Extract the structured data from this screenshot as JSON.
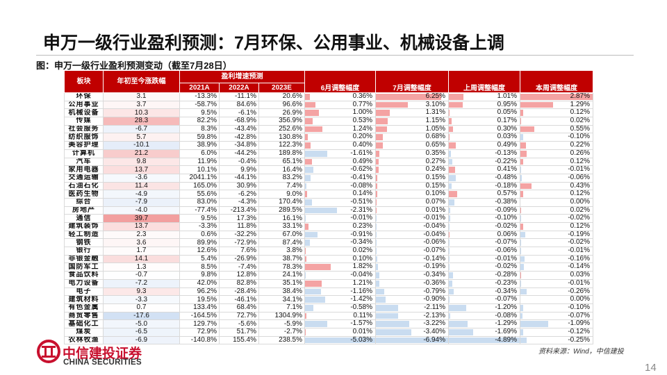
{
  "header": {
    "title": "申万一级行业盈利预测：7月环保、公用事业、机械设备上调",
    "caption": "图：申万一级行业盈利预测变动（截至7月28日）"
  },
  "table": {
    "sector_header": "板块",
    "ytd_header": "年初至今涨跌幅",
    "growth_header": "盈利增速预测",
    "growth_years": [
      "2021A",
      "2022A",
      "2023E"
    ],
    "adjust_headers": [
      "6月调整幅度",
      "7月调整幅度",
      "上周调整幅度",
      "本周调整幅度"
    ],
    "rows": [
      [
        "环保",
        "3.1",
        "-13.3%",
        "-11.1%",
        "20.6%",
        "0.36%",
        "6.25%",
        "1.01%",
        "2.87%"
      ],
      [
        "公用事业",
        "3.7",
        "-58.7%",
        "84.6%",
        "96.6%",
        "0.77%",
        "3.10%",
        "0.95%",
        "1.29%"
      ],
      [
        "机械设备",
        "10.3",
        "9.5%",
        "-6.1%",
        "26.9%",
        "1.00%",
        "1.31%",
        "0.05%",
        "0.12%"
      ],
      [
        "传媒",
        "28.3",
        "82.2%",
        "-68.9%",
        "356.9%",
        "0.53%",
        "1.15%",
        "0.17%",
        "0.02%"
      ],
      [
        "社会服务",
        "-6.7",
        "8.3%",
        "-43.4%",
        "252.6%",
        "1.24%",
        "1.05%",
        "0.30%",
        "0.55%"
      ],
      [
        "纺织服饰",
        "5.7",
        "59.8%",
        "-42.8%",
        "130.8%",
        "0.20%",
        "0.68%",
        "0.03%",
        "-0.10%"
      ],
      [
        "美容护理",
        "-10.1",
        "38.9%",
        "-34.8%",
        "122.3%",
        "0.40%",
        "0.65%",
        "0.49%",
        "0.22%"
      ],
      [
        "计算机",
        "21.2",
        "6.0%",
        "-44.2%",
        "189.8%",
        "-1.61%",
        "0.35%",
        "-0.13%",
        "0.26%"
      ],
      [
        "汽车",
        "9.8",
        "11.9%",
        "-0.4%",
        "65.1%",
        "0.49%",
        "0.27%",
        "-0.22%",
        "0.12%"
      ],
      [
        "家用电器",
        "13.7",
        "10.1%",
        "9.9%",
        "16.4%",
        "-0.62%",
        "0.24%",
        "0.41%",
        "-0.01%"
      ],
      [
        "交通运输",
        "-3.6",
        "2041.1%",
        "-44.1%",
        "83.2%",
        "-0.41%",
        "0.15%",
        "-0.48%",
        "-0.06%"
      ],
      [
        "石油石化",
        "11.4",
        "165.0%",
        "30.9%",
        "7.4%",
        "-0.08%",
        "0.15%",
        "-0.18%",
        "0.43%"
      ],
      [
        "医药生物",
        "-4.9",
        "55.6%",
        "-6.2%",
        "9.0%",
        "0.14%",
        "0.10%",
        "0.57%",
        "0.12%"
      ],
      [
        "综合",
        "-7.9",
        "83.0%",
        "-4.3%",
        "170.4%",
        "-0.51%",
        "0.07%",
        "-0.38%",
        "0.00%"
      ],
      [
        "房地产",
        "-4.0",
        "-77.4%",
        "-213.4%",
        "289.5%",
        "-2.31%",
        "0.01%",
        "-0.09%",
        "0.02%"
      ],
      [
        "通信",
        "39.7",
        "9.5%",
        "17.3%",
        "16.1%",
        "-0.01%",
        "-0.01%",
        "-0.10%",
        "-0.02%"
      ],
      [
        "建筑装饰",
        "13.7",
        "-3.3%",
        "11.8%",
        "33.1%",
        "0.23%",
        "-0.04%",
        "-0.02%",
        "0.12%"
      ],
      [
        "轻工制造",
        "2.3",
        "0.6%",
        "-32.2%",
        "67.0%",
        "-0.91%",
        "-0.04%",
        "0.06%",
        "-0.19%"
      ],
      [
        "钢铁",
        "3.6",
        "89.9%",
        "-72.9%",
        "87.4%",
        "-0.34%",
        "-0.06%",
        "-0.07%",
        "-0.02%"
      ],
      [
        "银行",
        "1.7",
        "12.6%",
        "7.6%",
        "3.8%",
        "0.02%",
        "-0.07%",
        "-0.06%",
        "-0.01%"
      ],
      [
        "非银金融",
        "14.1",
        "5.4%",
        "-26.9%",
        "38.7%",
        "0.10%",
        "-0.14%",
        "-0.01%",
        "-0.16%"
      ],
      [
        "国防军工",
        "1.3",
        "8.5%",
        "-7.4%",
        "78.3%",
        "1.82%",
        "-0.19%",
        "-0.02%",
        "-0.14%"
      ],
      [
        "食品饮料",
        "-0.7",
        "9.8%",
        "12.8%",
        "24.1%",
        "-0.04%",
        "-0.34%",
        "-0.28%",
        "0.03%"
      ],
      [
        "电力设备",
        "-7.2",
        "42.0%",
        "82.8%",
        "35.1%",
        "1.21%",
        "-0.36%",
        "-0.23%",
        "-0.01%"
      ],
      [
        "电子",
        "9.3",
        "96.2%",
        "-28.4%",
        "38.4%",
        "-1.16%",
        "-0.79%",
        "-0.34%",
        "-0.26%"
      ],
      [
        "建筑材料",
        "-3.3",
        "19.5%",
        "-46.1%",
        "34.1%",
        "-1.42%",
        "-0.90%",
        "-0.07%",
        "0.00%"
      ],
      [
        "有色金属",
        "0.7",
        "133.4%",
        "68.4%",
        "7.1%",
        "-0.58%",
        "-2.11%",
        "-1.20%",
        "-0.10%"
      ],
      [
        "商贸零售",
        "-17.6",
        "-164.5%",
        "72.7%",
        "1304.9%",
        "0.11%",
        "-2.13%",
        "-0.08%",
        "-0.07%"
      ],
      [
        "基础化工",
        "-5.0",
        "129.7%",
        "-5.6%",
        "-5.9%",
        "-1.57%",
        "-3.22%",
        "-1.29%",
        "-1.09%"
      ],
      [
        "煤炭",
        "-6.5",
        "72.9%",
        "51.7%",
        "-2.7%",
        "0.01%",
        "-3.40%",
        "-1.69%",
        "-0.12%"
      ],
      [
        "农林牧渔",
        "-6.9",
        "-140.8%",
        "155.4%",
        "238.5%",
        "-5.03%",
        "-6.94%",
        "-4.89%",
        "-0.25%"
      ]
    ]
  },
  "footer": {
    "source": "资料来源：Wind，中信建投",
    "logo_cn": "中信建投证券",
    "logo_en": "CHINA SECURITIES",
    "page": "14"
  }
}
